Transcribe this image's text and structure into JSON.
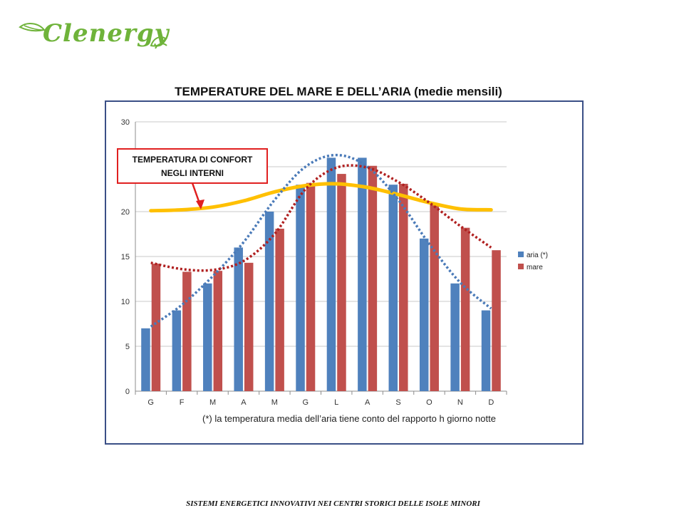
{
  "brand": {
    "name": "Clenergy"
  },
  "footer": {
    "text": "SISTEMI ENERGETICI INNOVATIVI NEI CENTRI STORICI DELLE ISOLE MINORI"
  },
  "colors": {
    "aria": "#4f81bd",
    "mare": "#c0504d",
    "comfort": "#ffc000",
    "frame": "#3a4f86",
    "callout": "#e02020",
    "brand": "#6fb33a"
  },
  "chart_data": {
    "type": "bar",
    "title": "TEMPERATURE DEL  MARE  E  DELL’ARIA  (medie mensili)",
    "categories": [
      "G",
      "F",
      "M",
      "A",
      "M",
      "G",
      "L",
      "A",
      "S",
      "O",
      "N",
      "D"
    ],
    "ylim": [
      0,
      30
    ],
    "yticks": [
      0,
      5,
      10,
      15,
      20,
      25,
      30
    ],
    "grid": true,
    "legend_position": "right",
    "series": [
      {
        "name": "aria (*)",
        "values": [
          7,
          9,
          12,
          16,
          20,
          23,
          26,
          26,
          23,
          17,
          12,
          9
        ]
      },
      {
        "name": "mare",
        "values": [
          14.2,
          13.3,
          13.4,
          14.3,
          18.1,
          23.2,
          24.2,
          25.1,
          23.1,
          20.8,
          18.2,
          15.7
        ]
      }
    ],
    "trendlines": [
      {
        "of": "aria (*)",
        "style": "dotted",
        "values": [
          7.2,
          9.6,
          12.8,
          16.6,
          21.3,
          25.0,
          26.3,
          25.0,
          21.3,
          16.4,
          12.1,
          9.2
        ]
      },
      {
        "of": "mare",
        "style": "dotted",
        "values": [
          14.3,
          13.6,
          13.5,
          14.5,
          17.5,
          22.5,
          24.9,
          24.9,
          23.3,
          21.0,
          18.4,
          16.0
        ]
      }
    ],
    "comfort_curve": {
      "label": "TEMPERATURA DI  CONFORT NEGLI INTERNI",
      "values": [
        20.1,
        20.2,
        20.5,
        21.2,
        22.2,
        22.9,
        23.1,
        22.7,
        21.9,
        21.0,
        20.3,
        20.2
      ]
    },
    "note": "(*) la temperatura media dell’aria tiene conto  del rapporto h giorno notte"
  }
}
